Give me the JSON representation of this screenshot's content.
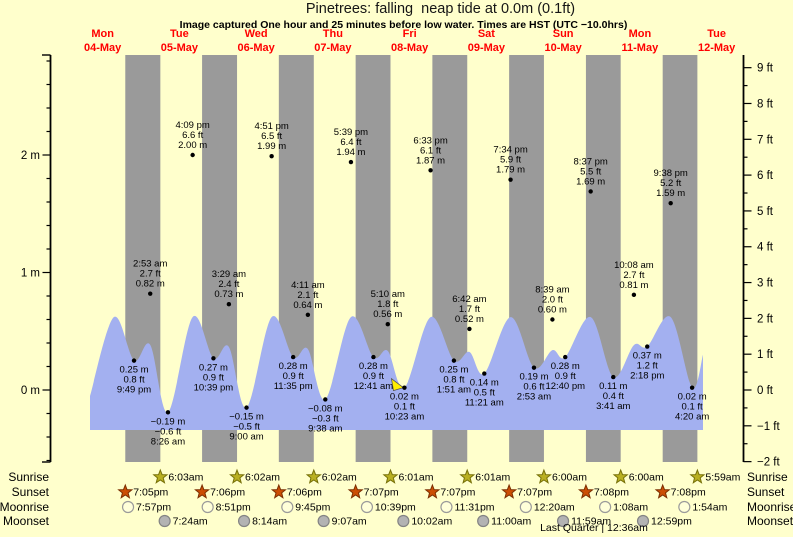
{
  "title": "Pinetrees: falling  neap tide at 0.0m (0.1ft)",
  "subtitle": "Image captured One hour and 25 minutes before low water. Times are HST (UTC −10.0hrs)",
  "colors": {
    "background": "#ffffcc",
    "night_band": "#9a9a9a",
    "tide_fill": "#a3b0f0",
    "day_label": "#ff0000",
    "axis": "#000000",
    "sunrise_star_fill": "#b9b021",
    "sunrise_star_stroke": "#767008",
    "sunset_star_fill": "#cc4e04",
    "sunset_star_stroke": "#7c2f02",
    "moonrise_fill": "#ffffd9",
    "moonrise_stroke": "#9a9a9a",
    "moonset_fill": "#b3b3b3",
    "moonset_stroke": "#838383",
    "current_marker": "#ffee00"
  },
  "chart_data": {
    "type": "area",
    "title": "Pinetrees: falling  neap tide at 0.0m (0.1ft)",
    "xlabel": "days (04-May to 12-May)",
    "ylabel_left": "meters",
    "ylabel_right": "feet",
    "ylim_left_m": [
      -0.61,
      2.85
    ],
    "ylim_right_ft": [
      -2,
      9
    ],
    "legend": "none",
    "grid": "day-night bands (gray = night)",
    "days": [
      {
        "weekday": "Mon",
        "date": "04-May"
      },
      {
        "weekday": "Tue",
        "date": "05-May"
      },
      {
        "weekday": "Wed",
        "date": "06-May"
      },
      {
        "weekday": "Thu",
        "date": "07-May"
      },
      {
        "weekday": "Fri",
        "date": "08-May"
      },
      {
        "weekday": "Sat",
        "date": "09-May"
      },
      {
        "weekday": "Sun",
        "date": "10-May"
      },
      {
        "weekday": "Mon",
        "date": "11-May"
      },
      {
        "weekday": "Tue",
        "date": "12-May"
      }
    ],
    "axes": {
      "left_ticks": [
        "0 m",
        "1 m",
        "2 m"
      ],
      "right_ticks": [
        "−2 ft",
        "−1 ft",
        "0 ft",
        "1 ft",
        "2 ft",
        "3 ft",
        "4 ft",
        "5 ft",
        "6 ft",
        "7 ft",
        "8 ft",
        "9 ft"
      ]
    },
    "tide_events": [
      {
        "day": 0,
        "time": "9:49 pm",
        "m": 0.25,
        "m_label": "0.25 m",
        "ft_label": "0.8 ft",
        "type": "low"
      },
      {
        "day": 1,
        "time": "2:53 am",
        "m": 0.82,
        "m_label": "0.82 m",
        "ft_label": "2.7 ft",
        "type": "high"
      },
      {
        "day": 1,
        "time": "8:26 am",
        "m": -0.19,
        "m_label": "−0.19 m",
        "ft_label": "−0.6 ft",
        "type": "low"
      },
      {
        "day": 1,
        "time": "4:09 pm",
        "m": 2.0,
        "m_label": "2.00 m",
        "ft_label": "6.6 ft",
        "type": "high"
      },
      {
        "day": 1,
        "time": "10:39 pm",
        "m": 0.27,
        "m_label": "0.27 m",
        "ft_label": "0.9 ft",
        "type": "low"
      },
      {
        "day": 2,
        "time": "3:29 am",
        "m": 0.73,
        "m_label": "0.73 m",
        "ft_label": "2.4 ft",
        "type": "high"
      },
      {
        "day": 2,
        "time": "9:00 am",
        "m": -0.15,
        "m_label": "−0.15 m",
        "ft_label": "−0.5 ft",
        "type": "low"
      },
      {
        "day": 2,
        "time": "4:51 pm",
        "m": 1.99,
        "m_label": "1.99 m",
        "ft_label": "6.5 ft",
        "type": "high"
      },
      {
        "day": 2,
        "time": "11:35 pm",
        "m": 0.28,
        "m_label": "0.28 m",
        "ft_label": "0.9 ft",
        "type": "low"
      },
      {
        "day": 3,
        "time": "4:11 am",
        "m": 0.64,
        "m_label": "0.64 m",
        "ft_label": "2.1 ft",
        "type": "high"
      },
      {
        "day": 3,
        "time": "9:38 am",
        "m": -0.08,
        "m_label": "−0.08 m",
        "ft_label": "−0.3 ft",
        "type": "low"
      },
      {
        "day": 3,
        "time": "5:39 pm",
        "m": 1.94,
        "m_label": "1.94 m",
        "ft_label": "6.4 ft",
        "type": "high"
      },
      {
        "day": 4,
        "time": "12:41 am",
        "m": 0.28,
        "m_label": "0.28 m",
        "ft_label": "0.9 ft",
        "type": "low"
      },
      {
        "day": 4,
        "time": "5:10 am",
        "m": 0.56,
        "m_label": "0.56 m",
        "ft_label": "1.8 ft",
        "type": "high"
      },
      {
        "day": 4,
        "time": "10:23 am",
        "m": 0.02,
        "m_label": "0.02 m",
        "ft_label": "0.1 ft",
        "type": "low",
        "current": true
      },
      {
        "day": 4,
        "time": "6:33 pm",
        "m": 1.87,
        "m_label": "1.87 m",
        "ft_label": "6.1 ft",
        "type": "high"
      },
      {
        "day": 5,
        "time": "1:51 am",
        "m": 0.25,
        "m_label": "0.25 m",
        "ft_label": "0.8 ft",
        "type": "low"
      },
      {
        "day": 5,
        "time": "6:42 am",
        "m": 0.52,
        "m_label": "0.52 m",
        "ft_label": "1.7 ft",
        "type": "high"
      },
      {
        "day": 5,
        "time": "11:21 am",
        "m": 0.14,
        "m_label": "0.14 m",
        "ft_label": "0.5 ft",
        "type": "low"
      },
      {
        "day": 5,
        "time": "7:34 pm",
        "m": 1.79,
        "m_label": "1.79 m",
        "ft_label": "5.9 ft",
        "type": "high"
      },
      {
        "day": 6,
        "time": "2:53 am",
        "m": 0.19,
        "m_label": "0.19 m",
        "ft_label": "0.6 ft",
        "type": "low"
      },
      {
        "day": 6,
        "time": "8:39 am",
        "m": 0.6,
        "m_label": "0.60 m",
        "ft_label": "2.0 ft",
        "type": "high"
      },
      {
        "day": 6,
        "time": "12:40 pm",
        "m": 0.28,
        "m_label": "0.28 m",
        "ft_label": "0.9 ft",
        "type": "low"
      },
      {
        "day": 6,
        "time": "8:37 pm",
        "m": 1.69,
        "m_label": "1.69 m",
        "ft_label": "5.5 ft",
        "type": "high"
      },
      {
        "day": 7,
        "time": "3:41 am",
        "m": 0.11,
        "m_label": "0.11 m",
        "ft_label": "0.4 ft",
        "type": "low"
      },
      {
        "day": 7,
        "time": "10:08 am",
        "m": 0.81,
        "m_label": "0.81 m",
        "ft_label": "2.7 ft",
        "type": "high"
      },
      {
        "day": 7,
        "time": "2:18 pm",
        "m": 0.37,
        "m_label": "0.37 m",
        "ft_label": "1.2 ft",
        "type": "low"
      },
      {
        "day": 7,
        "time": "9:38 pm",
        "m": 1.59,
        "m_label": "1.59 m",
        "ft_label": "5.2 ft",
        "type": "high"
      },
      {
        "day": 8,
        "time": "4:20 am",
        "m": 0.02,
        "m_label": "0.02 m",
        "ft_label": "0.1 ft",
        "type": "low"
      }
    ],
    "astro": {
      "rows": [
        {
          "label": "Sunrise",
          "icon": "sunrise-star-icon",
          "events": [
            {
              "day": 1,
              "time": "6:03am"
            },
            {
              "day": 2,
              "time": "6:02am"
            },
            {
              "day": 3,
              "time": "6:02am"
            },
            {
              "day": 4,
              "time": "6:01am"
            },
            {
              "day": 5,
              "time": "6:01am"
            },
            {
              "day": 6,
              "time": "6:00am"
            },
            {
              "day": 7,
              "time": "6:00am"
            },
            {
              "day": 8,
              "time": "5:59am"
            }
          ]
        },
        {
          "label": "Sunset",
          "icon": "sunset-star-icon",
          "events": [
            {
              "day": 0,
              "time": "7:05pm"
            },
            {
              "day": 1,
              "time": "7:06pm"
            },
            {
              "day": 2,
              "time": "7:06pm"
            },
            {
              "day": 3,
              "time": "7:07pm"
            },
            {
              "day": 4,
              "time": "7:07pm"
            },
            {
              "day": 5,
              "time": "7:07pm"
            },
            {
              "day": 6,
              "time": "7:08pm"
            },
            {
              "day": 7,
              "time": "7:08pm"
            }
          ]
        },
        {
          "label": "Moonrise",
          "icon": "moonrise-circle-icon",
          "events": [
            {
              "day": 0,
              "time": "7:57pm"
            },
            {
              "day": 1,
              "time": "8:51pm"
            },
            {
              "day": 2,
              "time": "9:45pm"
            },
            {
              "day": 3,
              "time": "10:39pm"
            },
            {
              "day": 4,
              "time": "11:31pm"
            },
            {
              "day": 6,
              "time": "12:20am"
            },
            {
              "day": 7,
              "time": "1:08am"
            },
            {
              "day": 8,
              "time": "1:54am"
            }
          ]
        },
        {
          "label": "Moonset",
          "icon": "moonset-circle-icon",
          "events": [
            {
              "day": 1,
              "time": "7:24am"
            },
            {
              "day": 2,
              "time": "8:14am"
            },
            {
              "day": 3,
              "time": "9:07am"
            },
            {
              "day": 4,
              "time": "10:02am"
            },
            {
              "day": 5,
              "time": "11:00am"
            },
            {
              "day": 6,
              "time": "11:59am"
            },
            {
              "day": 7,
              "time": "12:59pm"
            }
          ]
        }
      ],
      "footer": "Last Quarter | 12:36am"
    }
  }
}
